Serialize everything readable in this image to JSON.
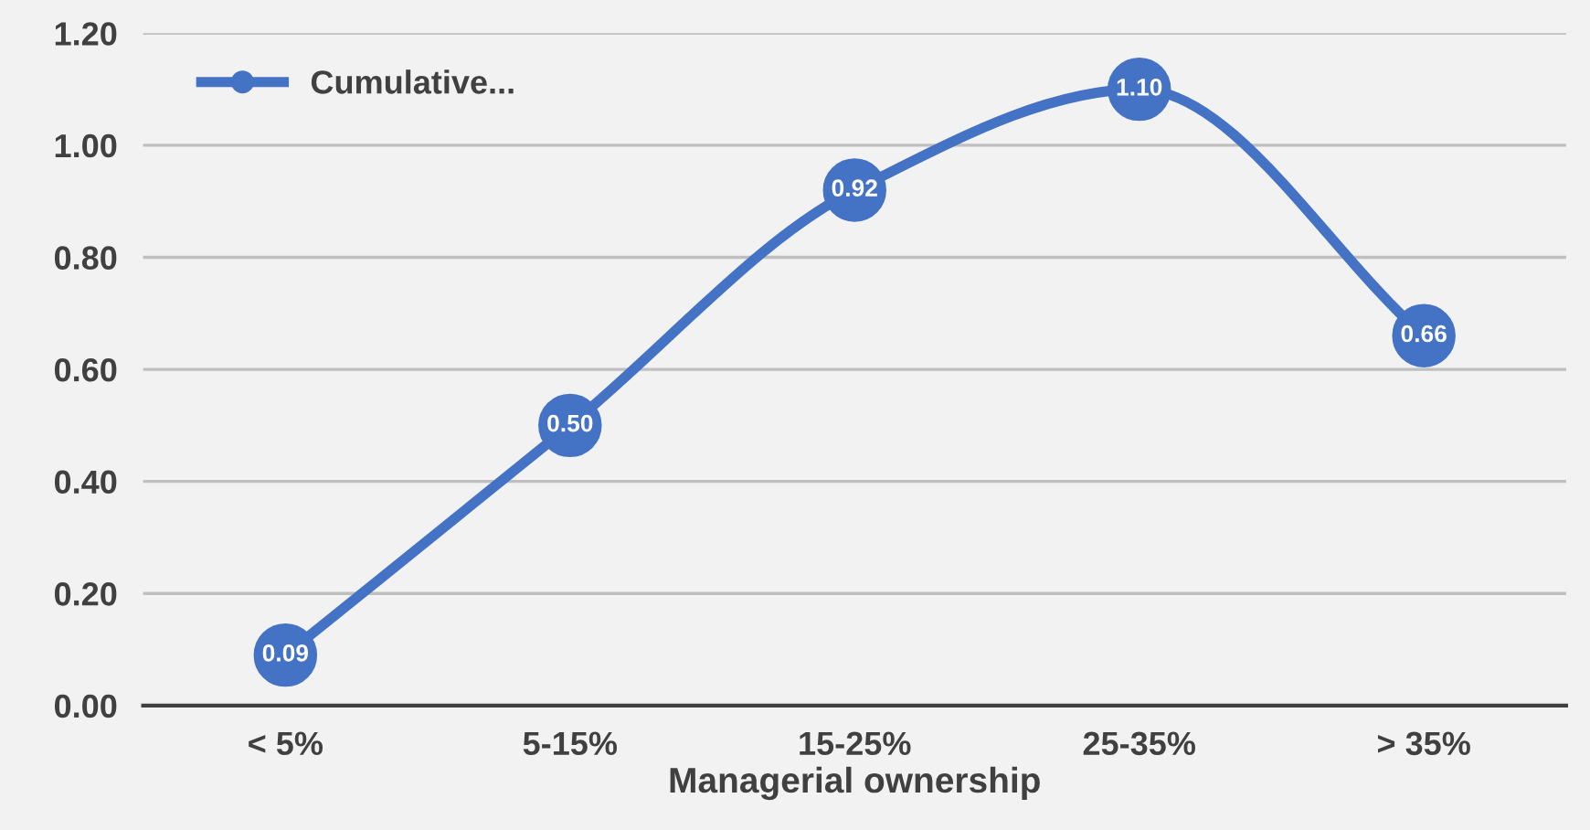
{
  "chart_data": {
    "type": "line",
    "xlabel": "Managerial ownership",
    "categories": [
      "< 5%",
      "5-15%",
      "15-25%",
      "25-35%",
      "> 35%"
    ],
    "series": [
      {
        "name": "Cumulative...",
        "color": "#4472c4",
        "values": [
          0.09,
          0.5,
          0.92,
          1.1,
          0.66
        ],
        "value_labels": [
          "0.09",
          "0.50",
          "0.92",
          "1.10",
          "0.66"
        ]
      }
    ],
    "ylim": [
      0,
      1.2
    ],
    "yticks": [
      {
        "value": 0,
        "label": "0.00"
      },
      {
        "value": 0.2,
        "label": "0.20"
      },
      {
        "value": 0.4,
        "label": "0.40"
      },
      {
        "value": 0.6,
        "label": "0.60"
      },
      {
        "value": 0.8,
        "label": "0.80"
      },
      {
        "value": 1.0,
        "label": "1.00"
      },
      {
        "value": 1.2,
        "label": "1.20"
      }
    ],
    "grid": "y",
    "legend": "top left",
    "marker": "circle",
    "line_style": "solid"
  }
}
